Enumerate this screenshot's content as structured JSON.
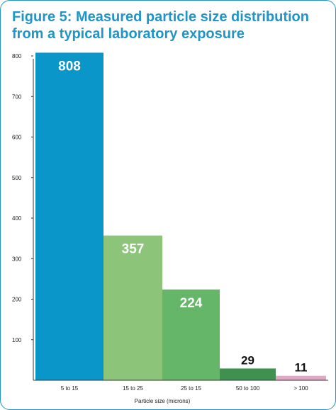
{
  "chart_data": {
    "type": "bar",
    "title": "Figure 5: Measured particle size distribution from a typical laboratory exposure",
    "xlabel": "Particle size (microns)",
    "ylabel": "",
    "ylim": [
      0,
      800
    ],
    "yticks": [
      100,
      200,
      300,
      400,
      500,
      600,
      700,
      800
    ],
    "categories": [
      "5 to 15",
      "15 to 25",
      "25 to 15",
      "50 to 100",
      "> 100"
    ],
    "values": [
      808,
      357,
      224,
      29,
      11
    ],
    "data_labels": [
      "808",
      "357",
      "224",
      "29",
      "11"
    ],
    "colors": [
      "#0a96c9",
      "#8cc47a",
      "#66b66a",
      "#3f9150",
      "#e3a6c5"
    ],
    "label_colors": [
      "#ffffff",
      "#ffffff",
      "#ffffff",
      "#111111",
      "#111111"
    ],
    "grid": false,
    "legend": "none"
  }
}
